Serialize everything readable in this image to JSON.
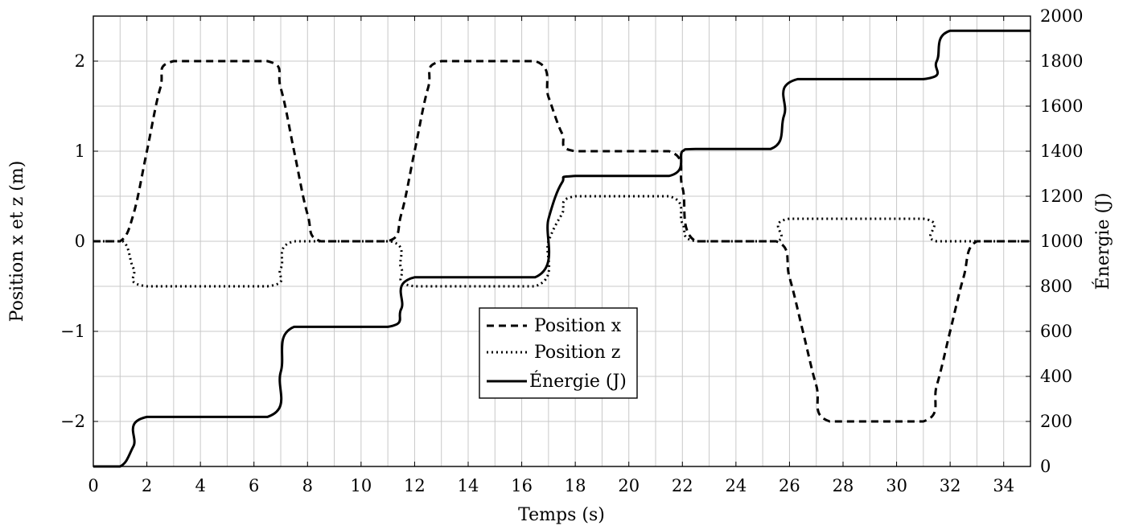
{
  "chart_data": {
    "type": "line",
    "xlabel": "Temps (s)",
    "ylabel_left": "Position x et z (m)",
    "ylabel_right": "Énergie (J)",
    "xlim": [
      0,
      35
    ],
    "ylim_left": [
      -2.5,
      2.5
    ],
    "ylim_right": [
      0,
      2000
    ],
    "grid": true,
    "legend_position": "center",
    "x_ticks": [
      0,
      2,
      4,
      6,
      8,
      10,
      12,
      14,
      16,
      18,
      20,
      22,
      24,
      26,
      28,
      30,
      32,
      34
    ],
    "y_ticks_left": [
      -2,
      -1,
      0,
      1,
      2
    ],
    "y_ticks_right": [
      0,
      200,
      400,
      600,
      800,
      1000,
      1200,
      1400,
      1600,
      1800,
      2000
    ],
    "series": [
      {
        "name": "Position x",
        "axis": "left",
        "style": "dashed",
        "x": [
          0,
          1,
          1.5,
          2,
          2.5,
          3,
          6.5,
          7,
          7.5,
          8,
          8.5,
          11,
          11.5,
          12,
          12.5,
          13,
          16.5,
          17,
          17.5,
          18,
          21.5,
          22,
          22.5,
          25.5,
          26,
          26.5,
          27,
          27.5,
          31,
          31.5,
          32,
          32.5,
          33,
          35
        ],
        "y": [
          0,
          0,
          0.3,
          1.0,
          1.7,
          2.0,
          2.0,
          1.7,
          1.0,
          0.3,
          0,
          0,
          0.3,
          1.0,
          1.7,
          2.0,
          2.0,
          1.6,
          1.2,
          1.0,
          1.0,
          0.6,
          0,
          0,
          -0.4,
          -1.0,
          -1.6,
          -2.0,
          -2.0,
          -1.6,
          -1.0,
          -0.4,
          0,
          0
        ]
      },
      {
        "name": "Position z",
        "axis": "left",
        "style": "dotted",
        "x": [
          0,
          1.1,
          1.5,
          2,
          6.5,
          7,
          7.5,
          11.1,
          11.5,
          12,
          16.5,
          17,
          17.5,
          18,
          21.5,
          22,
          22.5,
          25.5,
          26,
          31,
          31.5,
          35
        ],
        "y": [
          0,
          0,
          -0.3,
          -0.5,
          -0.5,
          -0.3,
          0,
          0,
          -0.3,
          -0.5,
          -0.5,
          0,
          0.3,
          0.5,
          0.5,
          0.2,
          0,
          0,
          0.25,
          0.25,
          0,
          0
        ]
      },
      {
        "name": "Énergie (J)",
        "axis": "right",
        "style": "solid",
        "x": [
          0,
          1,
          1.5,
          2,
          6.5,
          7,
          7.5,
          11,
          11.5,
          12,
          16.5,
          17,
          17.5,
          18,
          21.5,
          22,
          22.5,
          25.3,
          25.8,
          26.3,
          31,
          31.5,
          32,
          35
        ],
        "y": [
          0,
          0,
          90,
          220,
          220,
          420,
          620,
          620,
          700,
          840,
          840,
          1100,
          1260,
          1290,
          1290,
          1400,
          1410,
          1410,
          1560,
          1720,
          1720,
          1800,
          1935,
          1935
        ]
      }
    ]
  }
}
